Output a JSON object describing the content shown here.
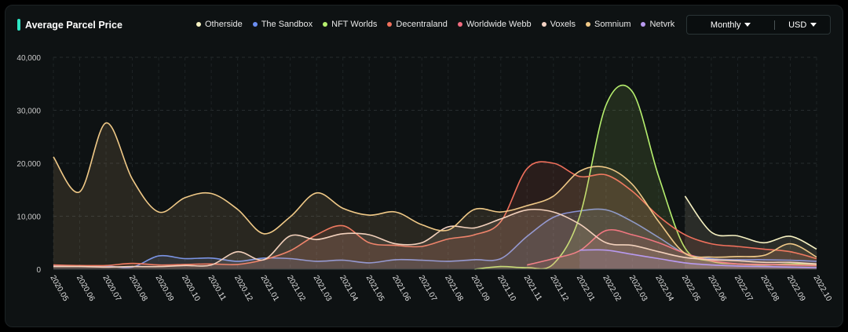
{
  "header": {
    "title": "Average Parcel Price"
  },
  "controls": {
    "period": "Monthly",
    "currency": "USD"
  },
  "chart_data": {
    "type": "area",
    "title": "Average Parcel Price",
    "xlabel": "",
    "ylabel": "",
    "ylim": [
      0,
      40000
    ],
    "y_ticks": [
      0,
      10000,
      20000,
      30000,
      40000
    ],
    "y_tick_labels": [
      "0",
      "10,000",
      "20,000",
      "30,000",
      "40,000"
    ],
    "grid": true,
    "legend_position": "top",
    "categories": [
      "2020.05",
      "2020.06",
      "2020.07",
      "2020.08",
      "2020.09",
      "2020.10",
      "2020.11",
      "2020.12",
      "2021.01",
      "2021.02",
      "2021.03",
      "2021.04",
      "2021.05",
      "2021.06",
      "2021.07",
      "2021.08",
      "2021.09",
      "2021.10",
      "2021.11",
      "2021.12",
      "2022.01",
      "2022.02",
      "2022.03",
      "2022.04",
      "2022.05",
      "2022.06",
      "2022.07",
      "2022.08",
      "2022.09",
      "2022.10"
    ],
    "series": [
      {
        "name": "Otherside",
        "color": "#f7f2c2",
        "values": [
          null,
          null,
          null,
          null,
          null,
          null,
          null,
          null,
          null,
          null,
          null,
          null,
          null,
          null,
          null,
          null,
          null,
          null,
          null,
          null,
          null,
          null,
          null,
          null,
          13800,
          7000,
          6300,
          5000,
          6200,
          3800
        ]
      },
      {
        "name": "The Sandbox",
        "color": "#6b8ef2",
        "values": [
          700,
          600,
          600,
          400,
          2500,
          2000,
          2100,
          1500,
          2100,
          2000,
          1500,
          1700,
          1200,
          1800,
          1700,
          1500,
          1800,
          2000,
          6200,
          9800,
          11000,
          11200,
          9000,
          6000,
          3000,
          2000,
          1800,
          1800,
          1700,
          1500
        ]
      },
      {
        "name": "NFT Worlds",
        "color": "#b6ef6e",
        "values": [
          null,
          null,
          null,
          null,
          null,
          null,
          null,
          null,
          null,
          null,
          null,
          null,
          null,
          null,
          null,
          null,
          0,
          500,
          300,
          1000,
          10000,
          31000,
          33500,
          17500,
          4000,
          1500,
          1000,
          800,
          1000,
          900
        ]
      },
      {
        "name": "Decentraland",
        "color": "#f0705c",
        "values": [
          800,
          700,
          700,
          1100,
          800,
          900,
          1000,
          900,
          1800,
          3500,
          6500,
          8200,
          5000,
          4500,
          4300,
          5700,
          6500,
          9000,
          19000,
          20000,
          17500,
          17800,
          14700,
          10000,
          6500,
          4800,
          4300,
          3800,
          3300,
          2000
        ]
      },
      {
        "name": "Worldwide Webb",
        "color": "#f26c80",
        "values": [
          null,
          null,
          null,
          null,
          null,
          null,
          null,
          null,
          null,
          null,
          null,
          null,
          null,
          null,
          null,
          null,
          null,
          null,
          800,
          2000,
          3500,
          7300,
          6500,
          5000,
          3000,
          1600,
          1000,
          900,
          800,
          700
        ]
      },
      {
        "name": "Voxels",
        "color": "#f4d3c4",
        "values": [
          500,
          500,
          400,
          500,
          500,
          700,
          800,
          3300,
          1800,
          6300,
          5600,
          6700,
          6500,
          4800,
          5000,
          8000,
          7800,
          9500,
          11200,
          10800,
          8500,
          5000,
          4500,
          3300,
          2200,
          1800,
          1600,
          1300,
          1300,
          1000
        ]
      },
      {
        "name": "Somnium",
        "color": "#f0c987",
        "values": [
          21200,
          14600,
          27600,
          17000,
          10800,
          13500,
          14300,
          11300,
          6700,
          9900,
          14400,
          11500,
          10200,
          10800,
          8400,
          7400,
          11300,
          10800,
          12000,
          13800,
          18500,
          19200,
          16000,
          9000,
          3000,
          2300,
          2400,
          2600,
          4800,
          2300
        ]
      },
      {
        "name": "Netvrk",
        "color": "#b89af0",
        "values": [
          null,
          null,
          null,
          null,
          null,
          null,
          null,
          null,
          null,
          null,
          null,
          null,
          null,
          null,
          null,
          null,
          null,
          null,
          null,
          null,
          3600,
          3600,
          2800,
          2000,
          1200,
          800,
          600,
          500,
          400,
          300
        ]
      }
    ]
  }
}
